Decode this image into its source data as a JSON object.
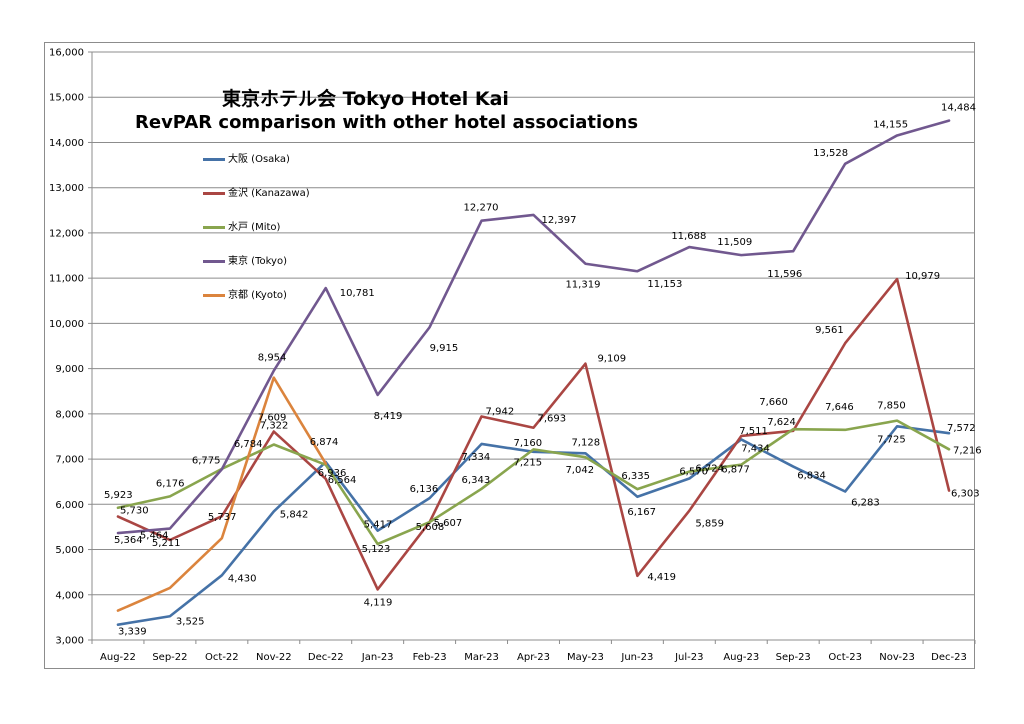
{
  "title_line1": "東京ホテル会 Tokyo Hotel Kai",
  "title_line2": "RevPAR comparison with other hotel associations",
  "chart_data": {
    "type": "line",
    "title": "東京ホテル会 Tokyo Hotel Kai — RevPAR comparison with other hotel associations",
    "xlabel": "",
    "ylabel": "",
    "ylim": [
      3000,
      16000
    ],
    "yticks": [
      3000,
      4000,
      5000,
      6000,
      7000,
      8000,
      9000,
      10000,
      11000,
      12000,
      13000,
      14000,
      15000,
      16000
    ],
    "ytick_labels": [
      "3,000",
      "4,000",
      "5,000",
      "6,000",
      "7,000",
      "8,000",
      "9,000",
      "10,000",
      "11,000",
      "12,000",
      "13,000",
      "14,000",
      "15,000",
      "16,000"
    ],
    "grid": "horizontal",
    "legend_position": "top-left",
    "categories": [
      "Aug-22",
      "Sep-22",
      "Oct-22",
      "Nov-22",
      "Dec-22",
      "Jan-23",
      "Feb-23",
      "Mar-23",
      "Apr-23",
      "May-23",
      "Jun-23",
      "Jul-23",
      "Aug-23",
      "Sep-23",
      "Oct-23",
      "Nov-23",
      "Dec-23"
    ],
    "series": [
      {
        "name": "大阪 (Osaka)",
        "color": "#4572a7",
        "values": [
          3339,
          3525,
          4430,
          5842,
          6936,
          5417,
          6136,
          7334,
          7160,
          7128,
          6167,
          6570,
          7434,
          6834,
          6283,
          7725,
          7572
        ],
        "labels": [
          "3,339",
          "3,525",
          "4,430",
          "5,842",
          "6,936",
          "5,417",
          "6,136",
          "7,334",
          "7,160",
          "7,128",
          "6,167",
          "6,570",
          "7,434",
          "6,834",
          "6,283",
          "7,725",
          "7,572"
        ]
      },
      {
        "name": "金沢 (Kanazawa)",
        "color": "#aa4643",
        "values": [
          5730,
          5211,
          5737,
          7609,
          6564,
          4119,
          5608,
          7942,
          7693,
          9109,
          4419,
          5859,
          7511,
          7624,
          9561,
          10979,
          6303
        ],
        "labels": [
          "5,730",
          "5,211",
          "5,737",
          "7,609",
          "6,564",
          "4,119",
          "5,608",
          "7,942",
          "7,693",
          "9,109",
          "4,419",
          "5,859",
          "7,511",
          "7,624",
          "9,561",
          "10,979",
          "6,303"
        ]
      },
      {
        "name": "水戸 (Mito)",
        "color": "#89a54e",
        "values": [
          5923,
          6176,
          6784,
          7322,
          6874,
          5123,
          5607,
          6343,
          7215,
          7042,
          6335,
          6724,
          6877,
          7660,
          7646,
          7850,
          7216
        ],
        "labels": [
          "5,923",
          "6,176",
          "6,784",
          "7,322",
          "6,874",
          "5,123",
          "5,607",
          "6,343",
          "7,215",
          "7,042",
          "6,335",
          "6,724",
          "6,877",
          "7,660",
          "7,646",
          "7,850",
          "7,216"
        ]
      },
      {
        "name": "東京 (Tokyo)",
        "color": "#71588f",
        "values": [
          5364,
          5464,
          6775,
          8954,
          10781,
          8419,
          9915,
          12270,
          12397,
          11319,
          11153,
          11688,
          11509,
          11596,
          13528,
          14155,
          14484
        ],
        "labels": [
          "5,364",
          "5,464",
          "6,775",
          "8,954",
          "10,781",
          "8,419",
          "9,915",
          "12,270",
          "12,397",
          "11,319",
          "11,153",
          "11,688",
          "11,509",
          "11,596",
          "13,528",
          "14,155",
          "14,484"
        ]
      },
      {
        "name": "京都 (Kyoto)",
        "color": "#db843d",
        "values": [
          3650,
          4150,
          5250,
          8800,
          6900,
          null,
          null,
          null,
          null,
          null,
          null,
          null,
          null,
          null,
          null,
          null,
          null
        ],
        "labels": []
      }
    ]
  }
}
